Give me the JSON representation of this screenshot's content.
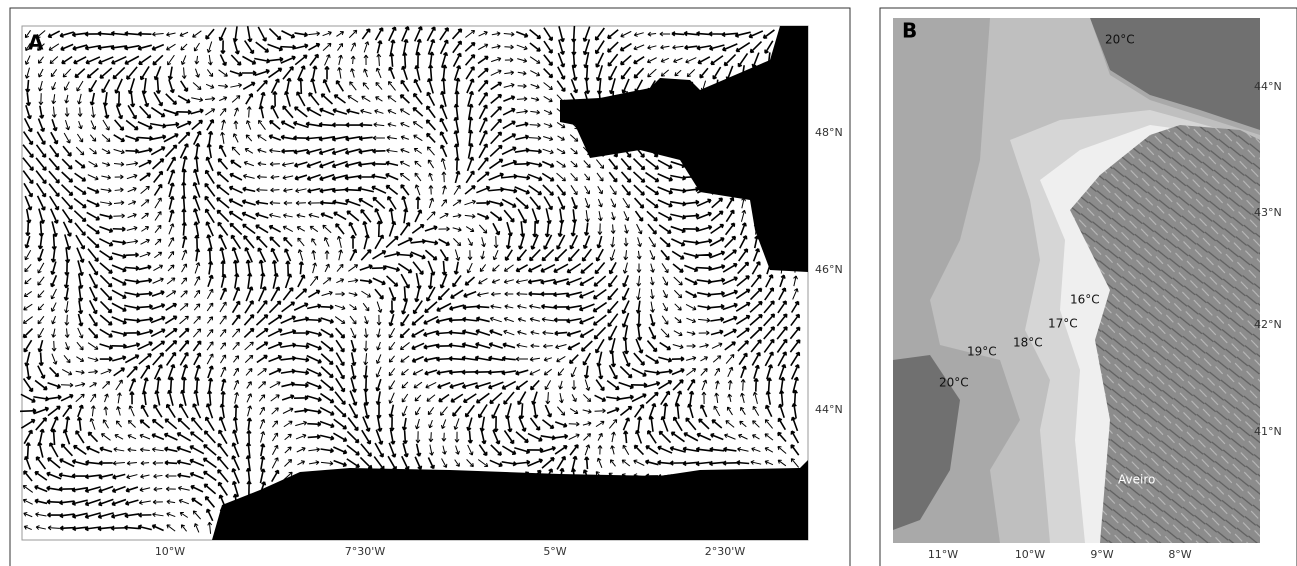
{
  "panels": [
    {
      "label": "A",
      "x_labels": [
        "10°W",
        "7°30'W",
        "5°W",
        "2°30'W"
      ],
      "y_labels": [
        "48°N",
        "46°N",
        "44°N"
      ]
    },
    {
      "label": "B",
      "x_labels": [
        "11°W",
        "10°W",
        "9°W",
        "8°W"
      ],
      "y_labels": [
        "44°N",
        "43°N",
        "42°N",
        "41°N"
      ],
      "isotherms": [
        "20°C",
        "16°C",
        "17°C",
        "18°C",
        "19°C",
        "20°C"
      ],
      "place": "Aveiro"
    }
  ]
}
